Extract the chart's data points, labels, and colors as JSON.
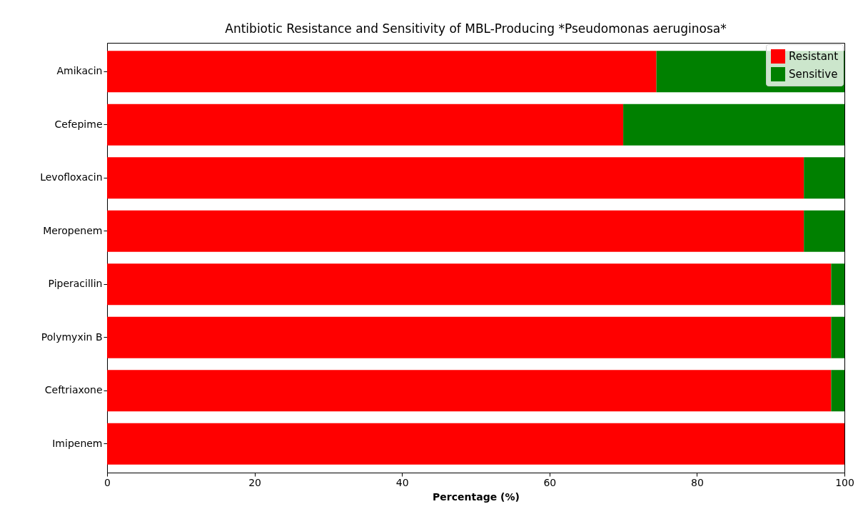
{
  "chart_data": {
    "type": "bar",
    "orientation": "horizontal",
    "stacked": true,
    "title": "Antibiotic Resistance and Sensitivity of MBL-Producing *Pseudomonas aeruginosa*",
    "xlabel": "Percentage (%)",
    "categories": [
      "Amikacin",
      "Cefepime",
      "Levofloxacin",
      "Meropenem",
      "Piperacillin",
      "Polymyxin B",
      "Ceftriaxone",
      "Imipenem"
    ],
    "series": [
      {
        "name": "Resistant",
        "color": "#ff0000",
        "values": [
          74.5,
          70,
          94.5,
          94.5,
          98.2,
          98.2,
          98.2,
          100
        ]
      },
      {
        "name": "Sensitive",
        "color": "#008000",
        "values": [
          25.5,
          30,
          5.5,
          5.5,
          1.8,
          1.8,
          1.8,
          0
        ]
      }
    ],
    "xlim": [
      0,
      100
    ],
    "xticks": [
      0,
      20,
      40,
      60,
      80,
      100
    ],
    "grid": false,
    "legend": "top right"
  }
}
